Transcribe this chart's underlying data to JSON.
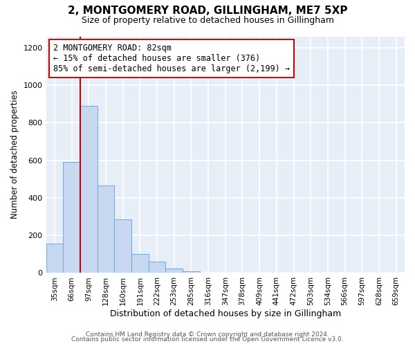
{
  "title": "2, MONTGOMERY ROAD, GILLINGHAM, ME7 5XP",
  "subtitle": "Size of property relative to detached houses in Gillingham",
  "xlabel": "Distribution of detached houses by size in Gillingham",
  "ylabel": "Number of detached properties",
  "bar_labels": [
    "35sqm",
    "66sqm",
    "97sqm",
    "128sqm",
    "160sqm",
    "191sqm",
    "222sqm",
    "253sqm",
    "285sqm",
    "316sqm",
    "347sqm",
    "378sqm",
    "409sqm",
    "441sqm",
    "472sqm",
    "503sqm",
    "534sqm",
    "566sqm",
    "597sqm",
    "628sqm",
    "659sqm"
  ],
  "bar_values": [
    155,
    590,
    890,
    465,
    285,
    100,
    60,
    25,
    10,
    0,
    0,
    0,
    0,
    0,
    0,
    0,
    0,
    0,
    0,
    0,
    0
  ],
  "bar_color": "#c8d8f0",
  "bar_edge_color": "#7ab0d8",
  "vline_color": "#cc0000",
  "annotation_text": "2 MONTGOMERY ROAD: 82sqm\n← 15% of detached houses are smaller (376)\n85% of semi-detached houses are larger (2,199) →",
  "annotation_box_facecolor": "#ffffff",
  "annotation_box_edgecolor": "#cc0000",
  "ylim": [
    0,
    1260
  ],
  "yticks": [
    0,
    200,
    400,
    600,
    800,
    1000,
    1200
  ],
  "fig_bg_color": "#ffffff",
  "plot_bg_color": "#e8eef8",
  "grid_color": "#ffffff",
  "footer_line1": "Contains HM Land Registry data © Crown copyright and database right 2024.",
  "footer_line2": "Contains public sector information licensed under the Open Government Licence v3.0."
}
